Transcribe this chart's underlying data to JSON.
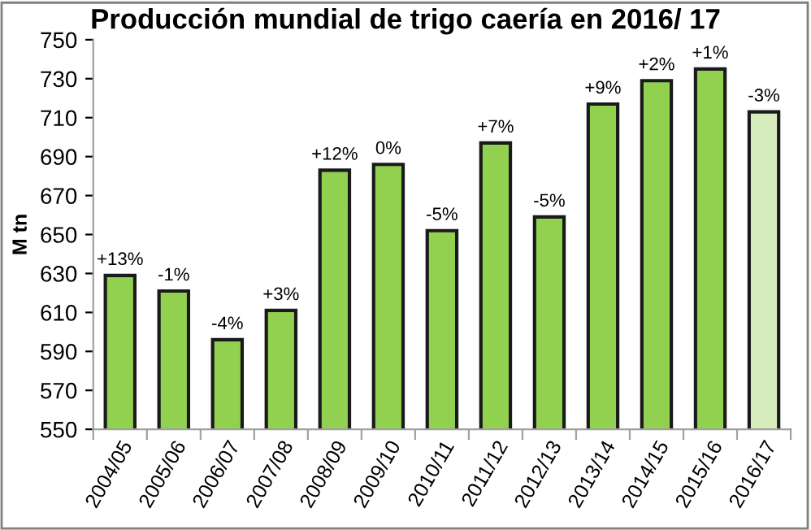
{
  "chart_data": {
    "type": "bar",
    "title": "Producción mundial de trigo caería en 2016/ 17",
    "ylabel": "M tn",
    "categories": [
      "2004/05",
      "2005/06",
      "2006/07",
      "2007/08",
      "2008/09",
      "2009/10",
      "2010/11",
      "2011/12",
      "2012/13",
      "2013/14",
      "2014/15",
      "2015/16",
      "2016/17"
    ],
    "values": [
      629,
      621,
      596,
      611,
      683,
      686,
      652,
      697,
      659,
      717,
      729,
      735,
      713
    ],
    "annotations": [
      {
        "text": "+13%",
        "x": "2004/05",
        "y": 629
      },
      {
        "text": "-1%",
        "x": "2005/06",
        "y": 621
      },
      {
        "text": "-4%",
        "x": "2006/07",
        "y": 596
      },
      {
        "text": "+3%",
        "x": "2007/08",
        "y": 611
      },
      {
        "text": "+12%",
        "x": "2008/09",
        "y": 683
      },
      {
        "text": "0%",
        "x": "2009/10",
        "y": 686
      },
      {
        "text": "-5%",
        "x": "2010/11",
        "y": 652
      },
      {
        "text": "+7%",
        "x": "2011/12",
        "y": 697
      },
      {
        "text": "-5%",
        "x": "2012/13",
        "y": 659
      },
      {
        "text": "+9%",
        "x": "2013/14",
        "y": 717
      },
      {
        "text": "+2%",
        "x": "2014/15",
        "y": 729
      },
      {
        "text": "+1%",
        "x": "2015/16",
        "y": 735
      },
      {
        "text": "-3%",
        "x": "2016/17",
        "y": 713
      }
    ],
    "colors": [
      "#92d050",
      "#92d050",
      "#92d050",
      "#92d050",
      "#92d050",
      "#92d050",
      "#92d050",
      "#92d050",
      "#92d050",
      "#92d050",
      "#92d050",
      "#92d050",
      "#d6ecbd"
    ],
    "ylim": [
      550,
      750
    ],
    "yticks": [
      550,
      570,
      590,
      610,
      630,
      650,
      670,
      690,
      710,
      730,
      750
    ],
    "grid": false,
    "legend": false
  }
}
